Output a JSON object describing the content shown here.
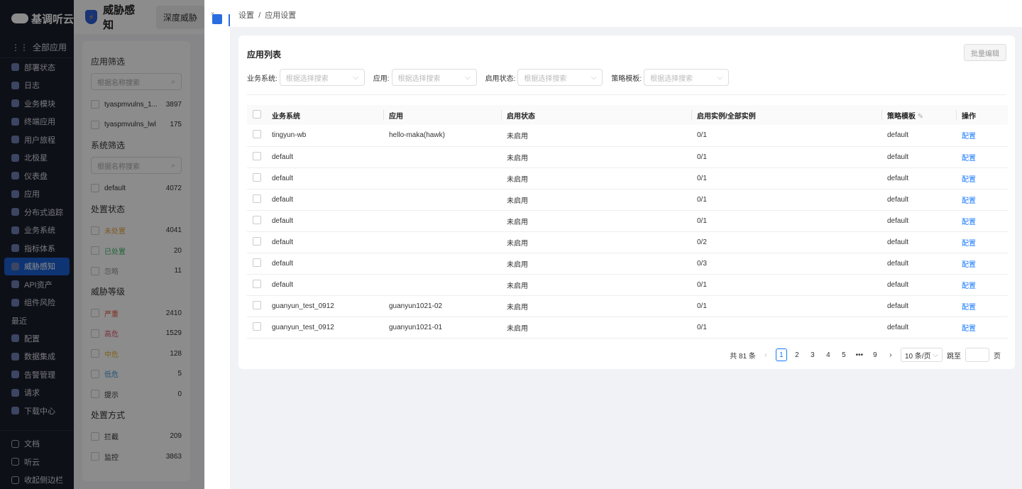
{
  "sidebar": {
    "brand": "基调听云",
    "all_apps": "全部应用",
    "items": [
      "部署状态",
      "日志",
      "业务模块",
      "终端应用",
      "用户旅程",
      "北极星",
      "仪表盘",
      "应用",
      "分布式追踪",
      "业务系统",
      "指标体系",
      "威胁感知",
      "API资产",
      "组件风险"
    ],
    "active": "威胁感知",
    "recent_label": "最近",
    "recent": [
      "配置",
      "数据集成",
      "告警管理",
      "请求",
      "下载中心"
    ],
    "bottom": [
      "文档",
      "听云",
      "收起侧边栏"
    ]
  },
  "mid": {
    "title": "威胁感知",
    "tab": "深度威胁",
    "app_filter": {
      "label": "应用筛选",
      "placeholder": "根据名称搜索",
      "items": [
        {
          "label": "tyaspmvulns_1...",
          "count": "3897"
        },
        {
          "label": "tyaspmvulns_lwl",
          "count": "175"
        }
      ]
    },
    "sys_filter": {
      "label": "系统筛选",
      "placeholder": "根据名称搜索",
      "items": [
        {
          "label": "default",
          "count": "4072"
        }
      ]
    },
    "status": {
      "label": "处置状态",
      "items": [
        {
          "label": "未处置",
          "count": "4041",
          "color": "#e8a33d"
        },
        {
          "label": "已处置",
          "count": "20",
          "color": "#3fb56b"
        },
        {
          "label": "忽略",
          "count": "11",
          "color": "#999"
        }
      ]
    },
    "level": {
      "label": "威胁等级",
      "items": [
        {
          "label": "严重",
          "count": "2410",
          "color": "#e5533d"
        },
        {
          "label": "高危",
          "count": "1529",
          "color": "#e0566e"
        },
        {
          "label": "中危",
          "count": "128",
          "color": "#e8b52f"
        },
        {
          "label": "低危",
          "count": "5",
          "color": "#3e9ad8"
        },
        {
          "label": "提示",
          "count": "0",
          "color": "#333"
        }
      ]
    },
    "method": {
      "label": "处置方式",
      "items": [
        {
          "label": "拦截",
          "count": "209"
        },
        {
          "label": "监控",
          "count": "3863"
        }
      ]
    }
  },
  "drawer": {
    "breadcrumb": [
      "设置",
      "应用设置"
    ],
    "card_title": "应用列表",
    "batch_edit": "批量编辑",
    "filters": [
      {
        "label": "业务系统",
        "placeholder": "根据选择搜索"
      },
      {
        "label": "应用",
        "placeholder": "根据选择搜索"
      },
      {
        "label": "启用状态",
        "placeholder": "根据选择搜索"
      },
      {
        "label": "策略模板",
        "placeholder": "根据选择搜索"
      }
    ],
    "columns": [
      "业务系统",
      "应用",
      "启用状态",
      "启用实例/全部实例",
      "策略模板",
      "操作"
    ],
    "rows": [
      [
        "tingyun-wb",
        "hello-maka(hawk)",
        "未启用",
        "0/1",
        "default",
        "配置"
      ],
      [
        "default",
        "",
        "未启用",
        "0/1",
        "default",
        "配置"
      ],
      [
        "default",
        "",
        "未启用",
        "0/1",
        "default",
        "配置"
      ],
      [
        "default",
        "",
        "未启用",
        "0/1",
        "default",
        "配置"
      ],
      [
        "default",
        "",
        "未启用",
        "0/1",
        "default",
        "配置"
      ],
      [
        "default",
        "",
        "未启用",
        "0/2",
        "default",
        "配置"
      ],
      [
        "default",
        "",
        "未启用",
        "0/3",
        "default",
        "配置"
      ],
      [
        "default",
        "",
        "未启用",
        "0/1",
        "default",
        "配置"
      ],
      [
        "guanyun_test_0912",
        "guanyun1021-02",
        "未启用",
        "0/1",
        "default",
        "配置"
      ],
      [
        "guanyun_test_0912",
        "guanyun1021-01",
        "未启用",
        "0/1",
        "default",
        "配置"
      ]
    ],
    "pagination": {
      "total": "共 81 条",
      "pages": [
        "1",
        "2",
        "3",
        "4",
        "5",
        "•••",
        "9"
      ],
      "current": "1",
      "page_size": "10 条/页",
      "jump_label": "跳至",
      "page_unit": "页"
    }
  }
}
